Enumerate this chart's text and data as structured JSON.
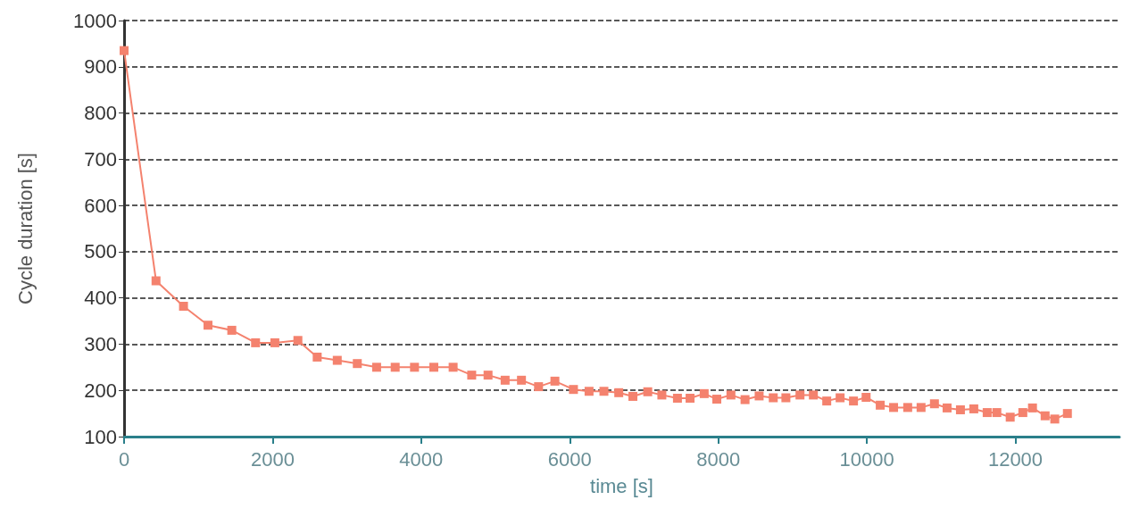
{
  "chart_data": {
    "type": "line",
    "xlabel": "time [s]",
    "ylabel": "Cycle duration [s]",
    "xlim": [
      0,
      13400
    ],
    "xticks": [
      0,
      2000,
      4000,
      6000,
      8000,
      10000,
      12000
    ],
    "ylim": [
      100,
      1000
    ],
    "yticks": [
      100,
      200,
      300,
      400,
      500,
      600,
      700,
      800,
      900,
      1000
    ],
    "grid": "y",
    "marker": "square",
    "line_style": "solid",
    "series": [
      {
        "color": "#f4826e",
        "x": [
          0,
          430,
          800,
          1130,
          1450,
          1770,
          2030,
          2340,
          2600,
          2870,
          3140,
          3400,
          3650,
          3910,
          4170,
          4430,
          4680,
          4900,
          5130,
          5350,
          5580,
          5800,
          6050,
          6260,
          6460,
          6660,
          6850,
          7050,
          7240,
          7450,
          7620,
          7810,
          7980,
          8170,
          8360,
          8550,
          8740,
          8910,
          9100,
          9280,
          9460,
          9640,
          9820,
          9990,
          10180,
          10360,
          10550,
          10730,
          10910,
          11080,
          11260,
          11440,
          11620,
          11750,
          11930,
          12100,
          12230,
          12400,
          12530,
          12700
        ],
        "values": [
          935,
          437,
          382,
          341,
          330,
          303,
          303,
          308,
          272,
          265,
          258,
          250,
          250,
          250,
          250,
          250,
          233,
          233,
          222,
          222,
          208,
          220,
          202,
          198,
          198,
          195,
          187,
          197,
          190,
          183,
          183,
          193,
          181,
          190,
          180,
          188,
          184,
          184,
          190,
          190,
          177,
          184,
          177,
          185,
          168,
          163,
          163,
          163,
          171,
          162,
          158,
          160,
          152,
          152,
          142,
          152,
          162,
          145,
          138,
          150
        ]
      }
    ]
  }
}
